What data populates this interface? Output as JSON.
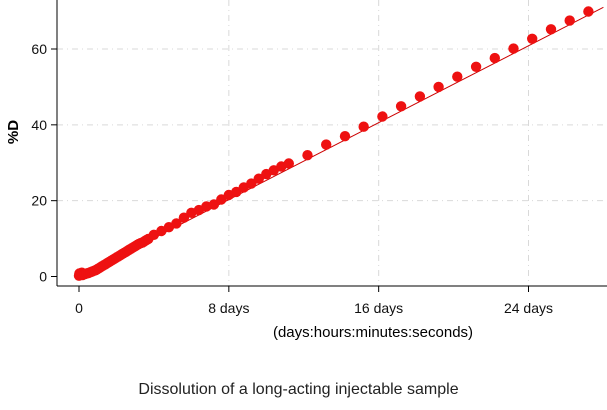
{
  "chart_data": {
    "type": "scatter",
    "caption": "Dissolution of a long-acting injectable sample",
    "xlabel": "(days:hours:minutes:seconds)",
    "ylabel": "%D",
    "x_unit": "days",
    "xlim": [
      -0.3,
      28
    ],
    "ylim": [
      -2,
      70
    ],
    "x_ticks": [
      {
        "value": 0,
        "label": "0"
      },
      {
        "value": 8,
        "label": "8 days"
      },
      {
        "value": 16,
        "label": "16 days"
      },
      {
        "value": 24,
        "label": "24 days"
      }
    ],
    "y_ticks": [
      {
        "value": 0,
        "label": "0"
      },
      {
        "value": 20,
        "label": "20"
      },
      {
        "value": 40,
        "label": "40"
      },
      {
        "value": 60,
        "label": "60"
      }
    ],
    "grid": true,
    "marker_color": "#ee1111",
    "line_color": "#cc0000",
    "trend_line": {
      "x": [
        0,
        28
      ],
      "y": [
        0,
        71
      ]
    },
    "points": {
      "x": [
        0,
        0.02,
        0.05,
        0.1,
        0.15,
        0.2,
        0.3,
        0.4,
        0.5,
        0.6,
        0.7,
        0.8,
        0.9,
        1.0,
        1.1,
        1.2,
        1.3,
        1.4,
        1.5,
        1.6,
        1.7,
        1.8,
        1.9,
        2.0,
        2.1,
        2.2,
        2.3,
        2.4,
        2.5,
        2.6,
        2.7,
        2.8,
        2.9,
        3.0,
        3.1,
        3.2,
        3.3,
        3.4,
        3.5,
        3.6,
        3.7,
        4.0,
        4.4,
        4.8,
        5.2,
        5.6,
        6.0,
        6.4,
        6.8,
        7.2,
        7.6,
        8.0,
        8.4,
        8.8,
        9.2,
        9.6,
        10.0,
        10.4,
        10.8,
        11.2,
        12.2,
        13.2,
        14.2,
        15.2,
        16.2,
        17.2,
        18.2,
        19.2,
        20.2,
        21.2,
        22.2,
        23.2,
        24.2,
        25.2,
        26.2,
        27.2
      ],
      "y": [
        0.2,
        0.8,
        0.5,
        0.6,
        1.0,
        0.4,
        0.6,
        0.8,
        0.9,
        1.1,
        1.3,
        1.5,
        1.7,
        2.0,
        2.3,
        2.6,
        2.9,
        3.2,
        3.5,
        3.8,
        4.1,
        4.4,
        4.7,
        5.0,
        5.3,
        5.6,
        5.9,
        6.2,
        6.5,
        6.8,
        7.1,
        7.4,
        7.7,
        8.0,
        8.3,
        8.6,
        8.8,
        9.0,
        9.3,
        9.6,
        9.9,
        11.0,
        12.0,
        13.0,
        14.0,
        15.5,
        16.8,
        17.5,
        18.5,
        19.0,
        20.3,
        21.5,
        22.3,
        23.5,
        24.5,
        25.8,
        27.0,
        28.0,
        29.0,
        29.8,
        32.0,
        34.8,
        37.0,
        39.5,
        42.2,
        44.9,
        47.5,
        50.0,
        52.7,
        55.3,
        57.6,
        60.1,
        62.7,
        65.2,
        67.5,
        69.9
      ]
    }
  }
}
